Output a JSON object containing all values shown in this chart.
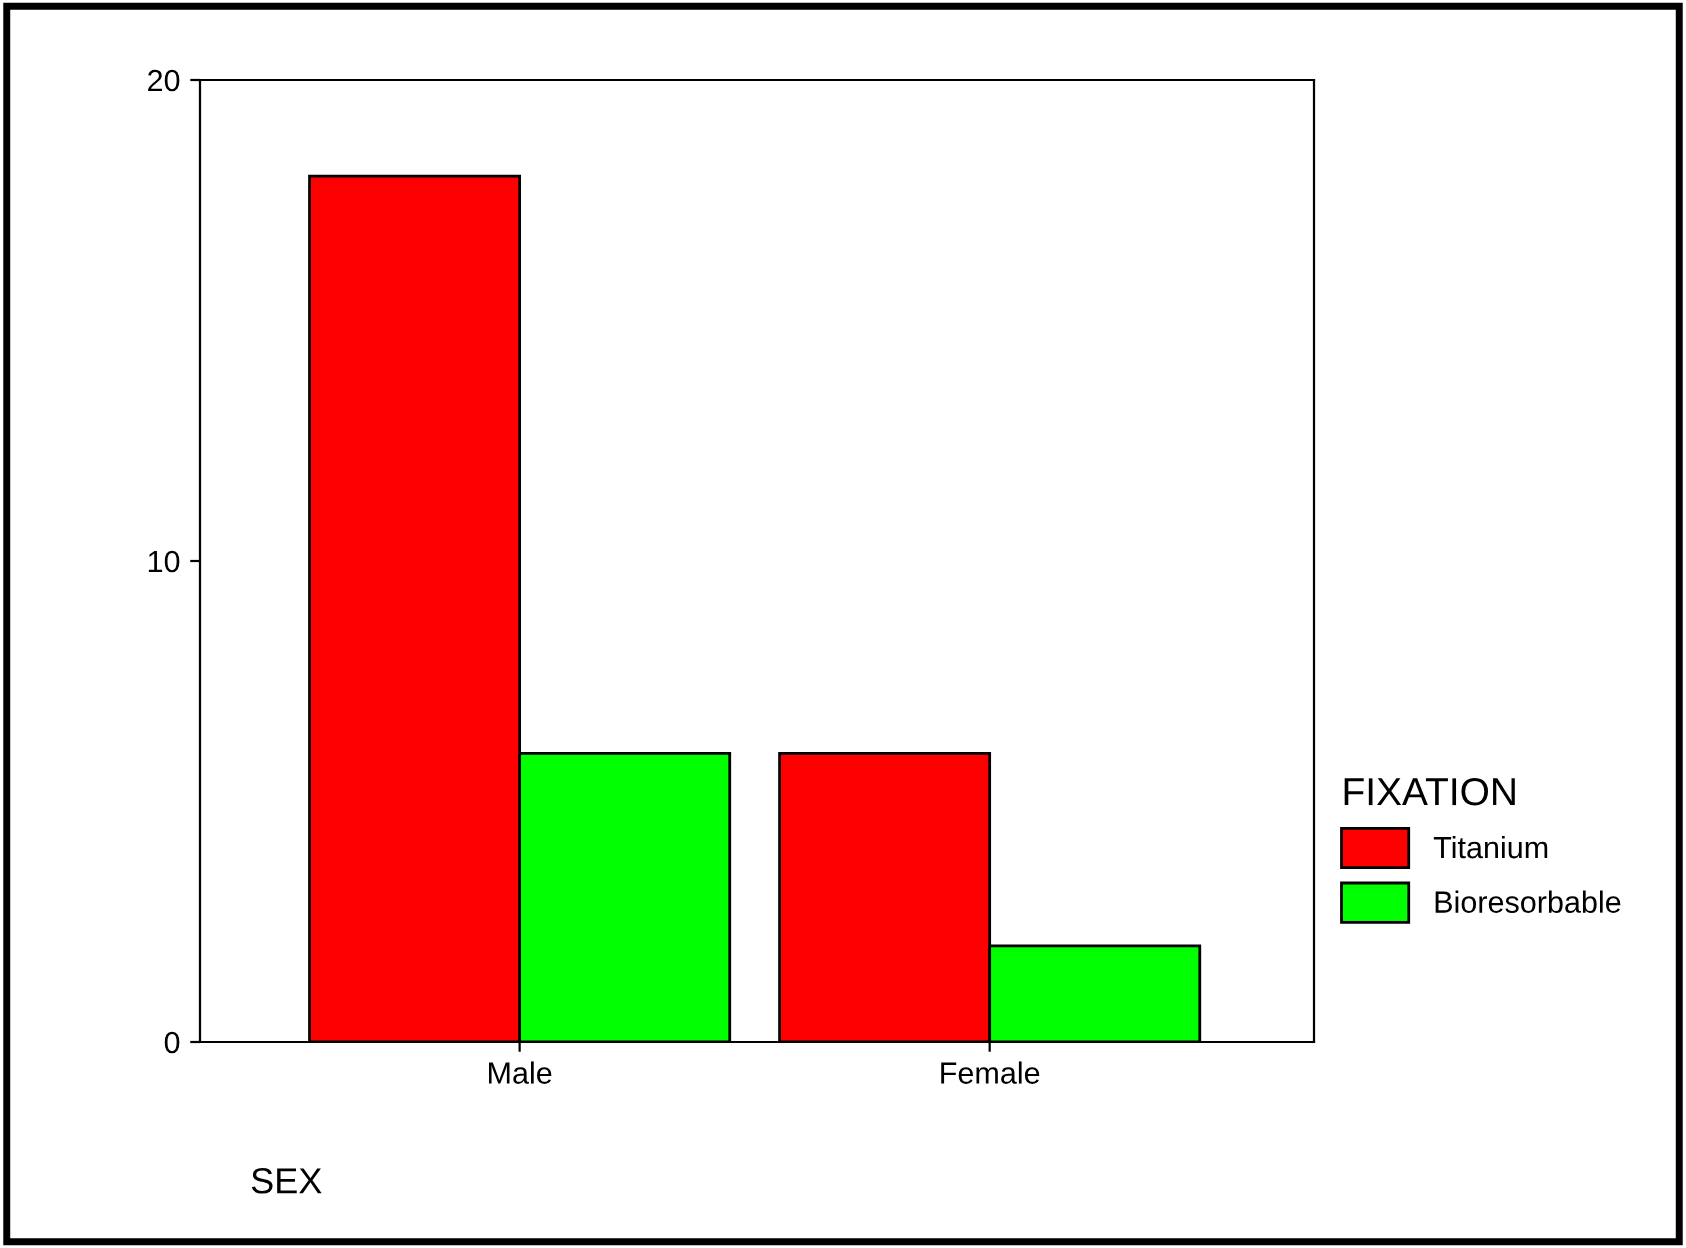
{
  "chart_data": {
    "type": "bar",
    "xlabel": "SEX",
    "legend_title": "FIXATION",
    "categories": [
      "Male",
      "Female"
    ],
    "series": [
      {
        "name": "Titanium",
        "color": "#ff0000",
        "values": [
          18,
          6
        ]
      },
      {
        "name": "Bioresorbable",
        "color": "#00ff00",
        "values": [
          6,
          2
        ]
      }
    ],
    "ylim": [
      0,
      20
    ],
    "yticks": [
      0,
      10,
      20
    ],
    "grid": false,
    "legend": "right"
  }
}
